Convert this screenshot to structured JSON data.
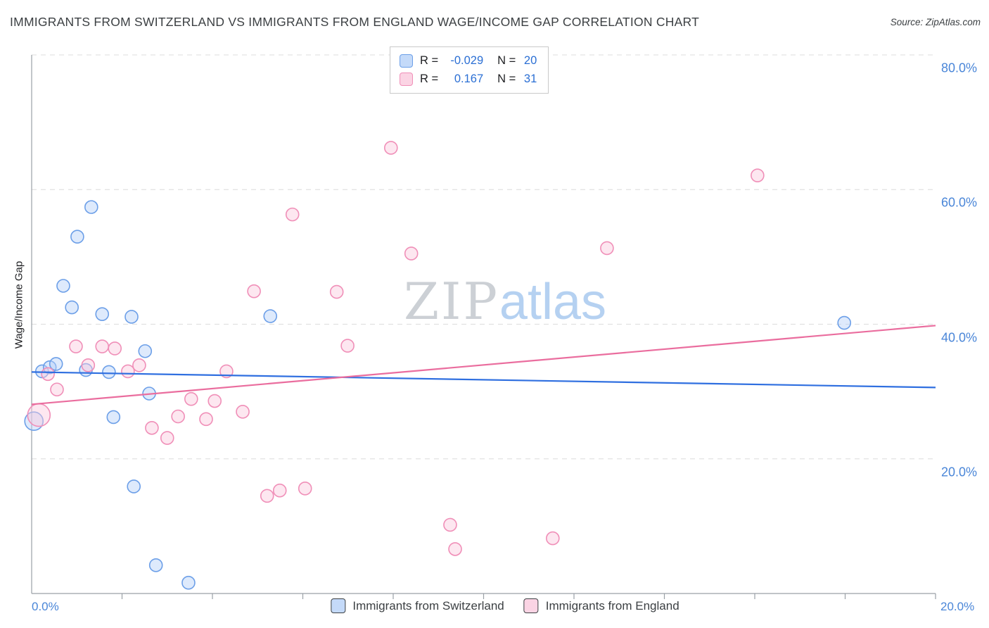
{
  "header": {
    "title": "IMMIGRANTS FROM SWITZERLAND VS IMMIGRANTS FROM ENGLAND WAGE/INCOME GAP CORRELATION CHART",
    "source": "Source: ZipAtlas.com"
  },
  "watermark": {
    "part_serif": "ZIP",
    "part_sans": "atlas"
  },
  "stats_legend": [
    {
      "series": "Immigrants from Switzerland",
      "r_label": "R =",
      "r_value": "-0.029",
      "n_label": "N =",
      "n_value": "20"
    },
    {
      "series": "Immigrants from England",
      "r_label": "R =",
      "r_value": "0.167",
      "n_label": "N =",
      "n_value": "31"
    }
  ],
  "bottom_legend": [
    {
      "label": "Immigrants from Switzerland"
    },
    {
      "label": "Immigrants from England"
    }
  ],
  "axes": {
    "y_title": "Wage/Income Gap"
  },
  "colors": {
    "axis_tick_blue": "#4a86d8",
    "grid": "#dcdcdc",
    "spine": "#9aa0a6",
    "switzerland_fill": "#b5d1f8",
    "switzerland_stroke": "#6c9fe8",
    "switzerland_line": "#2f6fe0",
    "england_fill": "#fac9dd",
    "england_stroke": "#f08fb8",
    "england_line": "#ea6d9e"
  },
  "chart_data": {
    "type": "scatter",
    "title": "Immigrants from Switzerland vs Immigrants from England Wage/Income Gap",
    "x_range": [
      0,
      20
    ],
    "y_range": [
      0,
      80
    ],
    "grid": "horizontal-dashed",
    "legend_position": "bottom",
    "y_ticks": [
      {
        "value": 80,
        "label": "80.0%"
      },
      {
        "value": 60,
        "label": "60.0%"
      },
      {
        "value": 40,
        "label": "40.0%"
      },
      {
        "value": 20,
        "label": "20.0%"
      }
    ],
    "x_ticks": [
      {
        "value": 0,
        "label": "0.0%"
      },
      {
        "value": 20,
        "label": "20.0%"
      }
    ],
    "x_minor_tick_step": 2,
    "series": [
      {
        "name": "Immigrants from Switzerland",
        "r": -0.029,
        "n": 20,
        "fill": "#b5d1f8",
        "stroke": "#6c9fe8",
        "points": [
          [
            0.05,
            25.6,
            13
          ],
          [
            0.23,
            33.0
          ],
          [
            0.4,
            33.6
          ],
          [
            0.54,
            34.1
          ],
          [
            0.7,
            45.7
          ],
          [
            0.89,
            42.5
          ],
          [
            1.01,
            53.0
          ],
          [
            1.2,
            33.2
          ],
          [
            1.32,
            57.4
          ],
          [
            1.56,
            41.5
          ],
          [
            1.71,
            32.9
          ],
          [
            1.81,
            26.2
          ],
          [
            2.21,
            41.1
          ],
          [
            2.26,
            15.9
          ],
          [
            2.51,
            36.0
          ],
          [
            2.6,
            29.7
          ],
          [
            2.75,
            4.2
          ],
          [
            3.47,
            1.6
          ],
          [
            5.28,
            41.2
          ],
          [
            17.98,
            40.2
          ]
        ]
      },
      {
        "name": "Immigrants from England",
        "r": 0.167,
        "n": 31,
        "fill": "#fac9dd",
        "stroke": "#f08fb8",
        "points": [
          [
            0.16,
            26.5,
            16
          ],
          [
            0.36,
            32.6
          ],
          [
            0.56,
            30.3
          ],
          [
            0.98,
            36.7
          ],
          [
            1.25,
            33.9
          ],
          [
            1.56,
            36.7
          ],
          [
            1.84,
            36.4
          ],
          [
            2.13,
            33.0
          ],
          [
            2.38,
            33.9
          ],
          [
            2.66,
            24.6
          ],
          [
            3.0,
            23.1
          ],
          [
            3.24,
            26.3
          ],
          [
            3.53,
            28.9
          ],
          [
            3.86,
            25.9
          ],
          [
            4.05,
            28.6
          ],
          [
            4.31,
            33.0
          ],
          [
            4.67,
            27.0
          ],
          [
            4.92,
            44.9
          ],
          [
            5.21,
            14.5
          ],
          [
            5.49,
            15.3
          ],
          [
            5.77,
            56.3
          ],
          [
            6.05,
            15.6
          ],
          [
            6.75,
            44.8
          ],
          [
            6.99,
            36.8
          ],
          [
            7.95,
            66.2
          ],
          [
            8.4,
            50.5
          ],
          [
            9.26,
            10.2
          ],
          [
            9.37,
            6.6
          ],
          [
            11.53,
            8.2
          ],
          [
            12.73,
            51.3
          ],
          [
            16.06,
            62.1
          ]
        ]
      }
    ],
    "trend_lines": [
      {
        "series": "Immigrants from Switzerland",
        "color": "#2f6fe0",
        "x1": 0,
        "y1": 32.9,
        "x2": 20,
        "y2": 30.6
      },
      {
        "series": "Immigrants from England",
        "color": "#ea6d9e",
        "x1": 0,
        "y1": 28.1,
        "x2": 20,
        "y2": 39.8
      }
    ]
  }
}
